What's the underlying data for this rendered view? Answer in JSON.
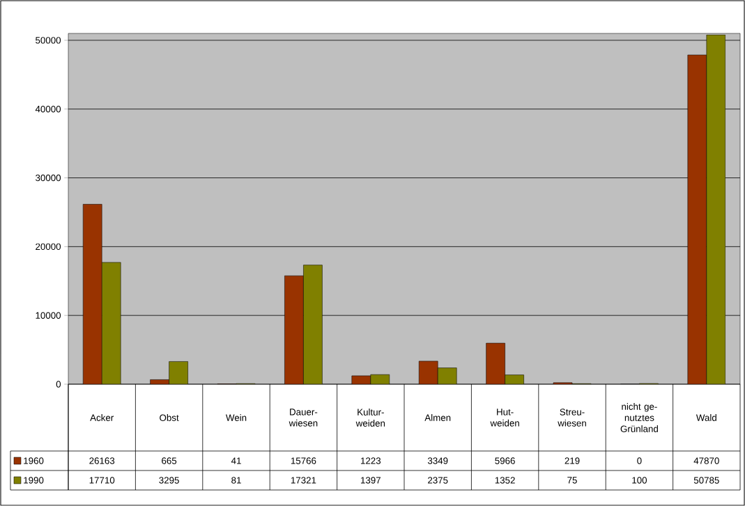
{
  "chart_data": {
    "type": "bar",
    "categories": [
      "Acker",
      "Obst",
      "Wein",
      "Dauer- wiesen",
      "Kultur- weiden",
      "Almen",
      "Hut- weiden",
      "Streu- wiesen",
      "nicht ge- nutztes Grünland",
      "Wald"
    ],
    "series": [
      {
        "name": "1960",
        "color": "#993300",
        "values": [
          26163,
          665,
          41,
          15766,
          1223,
          3349,
          5966,
          219,
          0,
          47870
        ]
      },
      {
        "name": "1990",
        "color": "#808000",
        "values": [
          17710,
          3295,
          81,
          17321,
          1397,
          2375,
          1352,
          75,
          100,
          50785
        ]
      }
    ],
    "ylim": [
      0,
      51000
    ],
    "yticks": [
      0,
      10000,
      20000,
      30000,
      40000,
      50000
    ],
    "grid": "y",
    "legend": "bottom",
    "data_labels": true
  }
}
